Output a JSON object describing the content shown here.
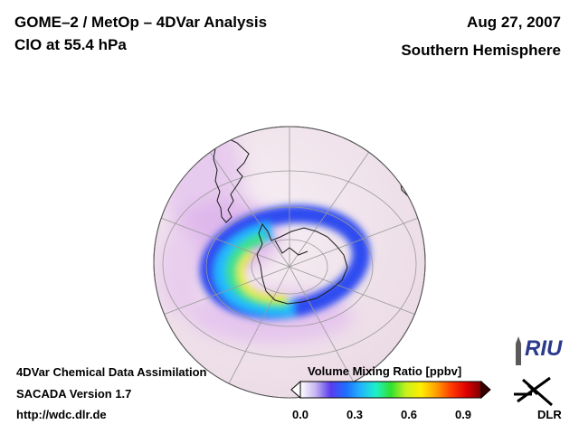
{
  "header": {
    "title_line1": "GOME–2 / MetOp – 4DVar Analysis",
    "title_line2": "ClO at 55.4 hPa",
    "date": "Aug 27, 2007",
    "hemisphere": "Southern Hemisphere"
  },
  "footer": {
    "line1": "4DVar Chemical Data Assimilation",
    "line2": "SACADA Version 1.7",
    "line3": "http://wdc.dlr.de"
  },
  "colorbar": {
    "title": "Volume Mixing Ratio [ppbv]",
    "ticks": [
      "0.0",
      "0.3",
      "0.6",
      "0.9"
    ],
    "range": [
      0.0,
      1.0
    ],
    "colors": [
      "#ffffff",
      "#c6b6f0",
      "#5a3cf0",
      "#1e6cff",
      "#22b4ff",
      "#1ef0c8",
      "#30e030",
      "#c8f01e",
      "#ffee00",
      "#ffa000",
      "#ff3c00",
      "#e00000",
      "#7a0000"
    ]
  },
  "logos": {
    "riu": "RIU",
    "dlr": "DLR"
  },
  "map": {
    "projection": "orthographic",
    "center": "South Pole",
    "field": "ClO volume mixing ratio",
    "ocean_color": "#f2e6ee",
    "icons": [
      "globe-icon",
      "coastline",
      "graticule"
    ]
  }
}
